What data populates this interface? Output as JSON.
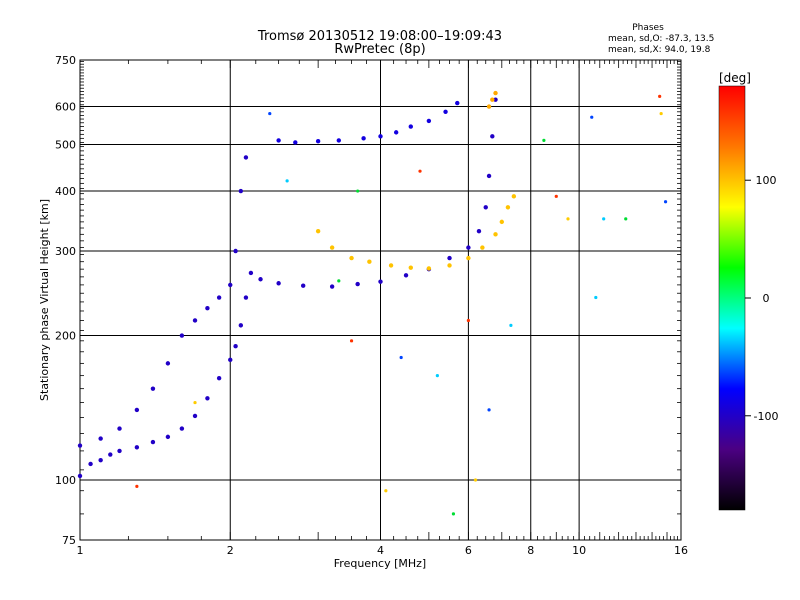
{
  "chart_data": {
    "type": "scatter",
    "title": "Tromsø 20130512 19:08:00–19:09:43",
    "subtitle": "RwPretec (8p)",
    "xlabel": "Frequency [MHz]",
    "ylabel": "Stationary phase Virtual Height [km]",
    "x_scale": "log",
    "y_scale": "log",
    "xlim": [
      1,
      16
    ],
    "ylim": [
      75,
      750
    ],
    "x_ticks": [
      1,
      2,
      4,
      6,
      8,
      10,
      16
    ],
    "y_ticks": [
      75,
      100,
      200,
      300,
      400,
      500,
      600,
      750
    ],
    "x_grid": [
      2,
      4,
      6,
      8,
      10
    ],
    "y_grid": [
      100,
      200,
      300,
      400,
      500,
      600
    ],
    "legend": {
      "title": "Phases",
      "lines": [
        "mean, sd,O: -87.3, 13.5",
        "mean, sd,X:  94.0, 19.8"
      ]
    },
    "colorbar": {
      "label": "[deg]",
      "range": [
        -180,
        180
      ],
      "ticks": [
        100,
        0,
        -100
      ],
      "colors": [
        "#ff0000",
        "#ff7700",
        "#ffff00",
        "#00ff00",
        "#00ffff",
        "#0000ff",
        "#4b0082",
        "#000000"
      ]
    },
    "series": [
      {
        "trace": "o-lower",
        "phase": -100,
        "points": [
          [
            1.0,
            102
          ],
          [
            1.05,
            108
          ],
          [
            1.1,
            110
          ],
          [
            1.15,
            113
          ],
          [
            1.2,
            115
          ],
          [
            1.3,
            117
          ],
          [
            1.4,
            120
          ],
          [
            1.5,
            123
          ],
          [
            1.6,
            128
          ],
          [
            1.7,
            136
          ],
          [
            1.8,
            148
          ],
          [
            1.9,
            163
          ],
          [
            2.0,
            178
          ],
          [
            2.05,
            190
          ],
          [
            2.1,
            210
          ],
          [
            2.15,
            240
          ],
          [
            2.2,
            270
          ],
          [
            2.3,
            262
          ],
          [
            2.5,
            257
          ],
          [
            2.8,
            254
          ],
          [
            3.2,
            253
          ],
          [
            3.6,
            256
          ],
          [
            4.0,
            259
          ],
          [
            4.5,
            267
          ],
          [
            5.0,
            275
          ],
          [
            5.5,
            290
          ],
          [
            6.0,
            305
          ],
          [
            6.3,
            330
          ],
          [
            6.5,
            370
          ],
          [
            6.6,
            430
          ],
          [
            6.7,
            520
          ],
          [
            6.8,
            620
          ]
        ]
      },
      {
        "trace": "o-upper",
        "phase": -100,
        "points": [
          [
            1.0,
            118
          ],
          [
            1.1,
            122
          ],
          [
            1.2,
            128
          ],
          [
            1.3,
            140
          ],
          [
            1.4,
            155
          ],
          [
            1.5,
            175
          ],
          [
            1.6,
            200
          ],
          [
            1.7,
            215
          ],
          [
            1.8,
            228
          ],
          [
            1.9,
            240
          ],
          [
            2.0,
            255
          ],
          [
            2.05,
            300
          ],
          [
            2.1,
            400
          ],
          [
            2.15,
            470
          ]
        ]
      },
      {
        "trace": "o-f2-echo",
        "phase": -90,
        "points": [
          [
            2.5,
            510
          ],
          [
            2.7,
            505
          ],
          [
            3.0,
            508
          ],
          [
            3.3,
            510
          ],
          [
            3.7,
            515
          ],
          [
            4.0,
            520
          ],
          [
            4.3,
            530
          ],
          [
            4.6,
            545
          ],
          [
            5.0,
            560
          ],
          [
            5.4,
            585
          ],
          [
            5.7,
            610
          ]
        ]
      },
      {
        "trace": "x",
        "phase": 100,
        "points": [
          [
            3.0,
            330
          ],
          [
            3.2,
            305
          ],
          [
            3.5,
            290
          ],
          [
            3.8,
            285
          ],
          [
            4.2,
            280
          ],
          [
            4.6,
            277
          ],
          [
            5.0,
            276
          ],
          [
            5.5,
            280
          ],
          [
            6.0,
            290
          ],
          [
            6.4,
            305
          ],
          [
            6.8,
            325
          ],
          [
            7.0,
            345
          ],
          [
            7.2,
            370
          ],
          [
            7.4,
            390
          ]
        ]
      },
      {
        "trace": "x-cusp",
        "phase": 110,
        "points": [
          [
            6.6,
            600
          ],
          [
            6.7,
            620
          ],
          [
            6.8,
            640
          ]
        ]
      }
    ],
    "scattered_points": [
      [
        1.3,
        97
      ],
      [
        1.7,
        145
      ],
      [
        2.4,
        580
      ],
      [
        2.6,
        420
      ],
      [
        3.3,
        260
      ],
      [
        3.5,
        195
      ],
      [
        4.1,
        95
      ],
      [
        4.4,
        180
      ],
      [
        5.2,
        165
      ],
      [
        5.6,
        85
      ],
      [
        6.0,
        215
      ],
      [
        6.2,
        100
      ],
      [
        6.6,
        140
      ],
      [
        7.3,
        210
      ],
      [
        8.5,
        510
      ],
      [
        9.0,
        390
      ],
      [
        9.5,
        350
      ],
      [
        10.6,
        570
      ],
      [
        11.2,
        350
      ],
      [
        12.4,
        350
      ],
      [
        14.5,
        630
      ],
      [
        14.6,
        580
      ],
      [
        14.9,
        380
      ],
      [
        10.8,
        240
      ],
      [
        3.6,
        400
      ],
      [
        4.8,
        440
      ]
    ]
  }
}
